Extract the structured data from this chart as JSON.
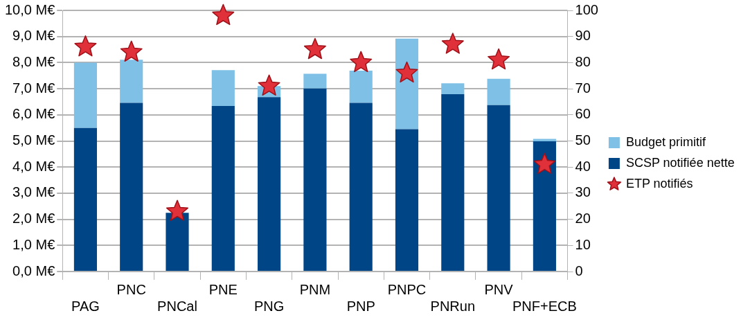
{
  "chart_data": {
    "type": "bar",
    "stacked": true,
    "categories": [
      "PAG",
      "PNC",
      "PNCal",
      "PNE",
      "PNG",
      "PNM",
      "PNP",
      "PNPC",
      "PNRun",
      "PNV",
      "PNF+ECB"
    ],
    "series": [
      {
        "name": "SCSP notifiée nette",
        "color": "#004586",
        "values": [
          5.5,
          6.46,
          2.25,
          6.34,
          6.68,
          7.01,
          6.46,
          5.45,
          6.79,
          6.37,
          4.99
        ]
      },
      {
        "name": "Budget primitif",
        "color": "#7fc0e6",
        "values": [
          2.5,
          1.65,
          0,
          1.37,
          0.42,
          0.56,
          1.23,
          3.47,
          0.42,
          1.01,
          0.09
        ]
      },
      {
        "name": "ETP notifiés",
        "type": "scatter",
        "axis": "y2",
        "marker": "star",
        "color": "#e0303a",
        "values": [
          86,
          84,
          23,
          98,
          71,
          85,
          80,
          76,
          87,
          81,
          41
        ]
      }
    ],
    "ylim": [
      0,
      10
    ],
    "yticks": [
      {
        "value": 0,
        "label": "0,0 M€"
      },
      {
        "value": 1,
        "label": "1,0 M€"
      },
      {
        "value": 2,
        "label": "2,0 M€"
      },
      {
        "value": 3,
        "label": "3,0 M€"
      },
      {
        "value": 4,
        "label": "4,0 M€"
      },
      {
        "value": 5,
        "label": "5,0 M€"
      },
      {
        "value": 6,
        "label": "6,0 M€"
      },
      {
        "value": 7,
        "label": "7,0 M€"
      },
      {
        "value": 8,
        "label": "8,0 M€"
      },
      {
        "value": 9,
        "label": "9,0 M€"
      },
      {
        "value": 10,
        "label": "10,0 M€"
      }
    ],
    "y2lim": [
      0,
      100
    ],
    "y2ticks": [
      0,
      10,
      20,
      30,
      40,
      50,
      60,
      70,
      80,
      90,
      100
    ],
    "grid": "y",
    "legend": "right"
  }
}
